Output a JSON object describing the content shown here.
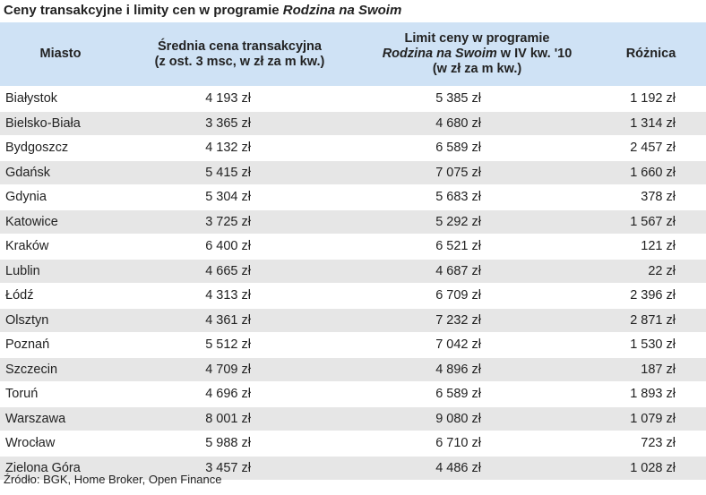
{
  "title": {
    "prefix": "Ceny transakcyjne i limity cen w programie ",
    "italic": "Rodzina na Swoim"
  },
  "headers": {
    "city": "Miasto",
    "avg_line1": "Średnia cena transakcyjna",
    "avg_line2": "(z ost. 3 msc, w zł za m kw.)",
    "limit_line1": "Limit ceny w programie",
    "limit_line2_italic": "Rodzina na Swoim",
    "limit_line2_rest": " w IV kw. '10",
    "limit_line3": "(w zł za m kw.)",
    "diff": "Różnica"
  },
  "rows": [
    {
      "city": "Białystok",
      "avg": "4 193 zł",
      "limit": "5 385 zł",
      "diff": "1 192 zł"
    },
    {
      "city": "Bielsko-Biała",
      "avg": "3 365 zł",
      "limit": "4 680 zł",
      "diff": "1 314 zł"
    },
    {
      "city": "Bydgoszcz",
      "avg": "4 132 zł",
      "limit": "6 589 zł",
      "diff": "2 457 zł"
    },
    {
      "city": "Gdańsk",
      "avg": "5 415 zł",
      "limit": "7 075 zł",
      "diff": "1 660 zł"
    },
    {
      "city": "Gdynia",
      "avg": "5 304 zł",
      "limit": "5 683 zł",
      "diff": "378 zł"
    },
    {
      "city": "Katowice",
      "avg": "3 725 zł",
      "limit": "5 292 zł",
      "diff": "1 567 zł"
    },
    {
      "city": "Kraków",
      "avg": "6 400 zł",
      "limit": "6 521 zł",
      "diff": "121 zł"
    },
    {
      "city": "Lublin",
      "avg": "4 665 zł",
      "limit": "4 687 zł",
      "diff": "22 zł"
    },
    {
      "city": "Łódź",
      "avg": "4 313 zł",
      "limit": "6 709 zł",
      "diff": "2 396 zł"
    },
    {
      "city": "Olsztyn",
      "avg": "4 361 zł",
      "limit": "7 232 zł",
      "diff": "2 871 zł"
    },
    {
      "city": "Poznań",
      "avg": "5 512 zł",
      "limit": "7 042 zł",
      "diff": "1 530 zł"
    },
    {
      "city": "Szczecin",
      "avg": "4 709 zł",
      "limit": "4 896 zł",
      "diff": "187 zł"
    },
    {
      "city": "Toruń",
      "avg": "4 696 zł",
      "limit": "6 589 zł",
      "diff": "1 893 zł"
    },
    {
      "city": "Warszawa",
      "avg": "8 001 zł",
      "limit": "9 080 zł",
      "diff": "1 079 zł"
    },
    {
      "city": "Wrocław",
      "avg": "5 988 zł",
      "limit": "6 710 zł",
      "diff": "723 zł"
    },
    {
      "city": "Zielona Góra",
      "avg": "3 457 zł",
      "limit": "4 486 zł",
      "diff": "1 028 zł"
    }
  ],
  "source": "Źródło: BGK, Home Broker, Open Finance"
}
